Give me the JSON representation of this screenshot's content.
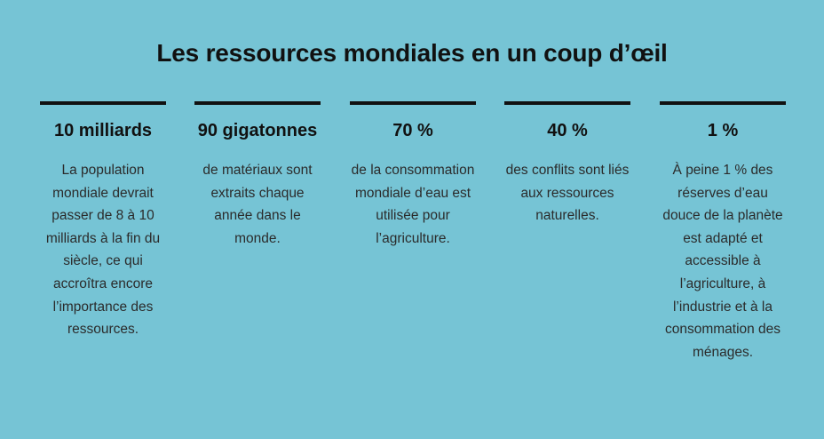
{
  "title": "Les ressources mondiales en un coup d’œil",
  "items": [
    {
      "value": "10 milliards",
      "text": "La population mondiale devrait passer de 8 à 10 milliards à la fin du siècle, ce qui accroîtra encore l’importance des ressources."
    },
    {
      "value": "90 gigatonnes",
      "text": "de matériaux sont extraits chaque année dans le monde."
    },
    {
      "value": "70 %",
      "text": "de la consommation mondiale d’eau est utilisée pour l’agriculture."
    },
    {
      "value": "40 %",
      "text": "des conflits sont liés aux ressources naturelles."
    },
    {
      "value": "1 %",
      "text": "À peine 1 % des réserves d’eau douce de la planète est adapté et accessible à l’agriculture, à l’industrie et à la consommation des ménages."
    }
  ]
}
